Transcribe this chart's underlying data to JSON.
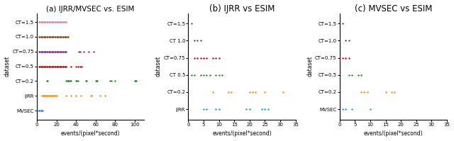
{
  "subplot_titles": [
    "(a) IJRR/MVSEC vs. ESIM",
    "(b) IJRR vs ESIM",
    "(c) MVSEC vs ESIM"
  ],
  "xlabel": "events/(pixel*second)",
  "ylabel": "dataset",
  "plot_a": {
    "yticks": [
      "CT=1.5",
      "CT=1.0",
      "CT=0.75",
      "CT=0.5",
      "CT=0.2",
      "IJRR",
      "MVSEC"
    ],
    "xlim": [
      0,
      110
    ],
    "xticks": [
      0,
      20,
      40,
      60,
      80,
      100
    ],
    "data": {
      "CT=1.5": [
        2,
        3,
        4,
        5,
        6,
        7,
        8,
        9,
        10,
        11,
        12,
        13,
        14,
        15,
        16,
        17,
        18,
        19,
        20,
        21,
        22,
        23,
        24,
        25,
        26,
        27,
        28,
        29,
        30
      ],
      "CT=1.0": [
        2,
        3,
        4,
        5,
        6,
        7,
        8,
        9,
        10,
        11,
        12,
        13,
        14,
        15,
        16,
        17,
        18,
        19,
        20,
        21,
        22,
        23,
        24,
        25,
        26,
        27,
        28,
        29,
        30,
        31,
        32
      ],
      "CT=0.75": [
        2,
        3,
        4,
        5,
        6,
        7,
        8,
        9,
        10,
        11,
        12,
        13,
        14,
        15,
        16,
        17,
        18,
        19,
        20,
        21,
        22,
        23,
        24,
        25,
        26,
        27,
        28,
        29,
        30,
        43,
        44,
        48,
        53,
        58
      ],
      "CT=0.5": [
        2,
        3,
        4,
        5,
        6,
        7,
        8,
        9,
        10,
        11,
        12,
        13,
        14,
        15,
        16,
        17,
        18,
        19,
        20,
        21,
        22,
        23,
        24,
        25,
        26,
        27,
        28,
        29,
        30,
        35,
        40,
        42,
        44,
        46
      ],
      "CT=0.2": [
        10,
        11,
        30,
        31,
        32,
        33,
        34,
        35,
        40,
        41,
        42,
        50,
        51,
        60,
        61,
        62,
        75,
        76,
        80,
        100,
        101,
        102
      ],
      "IJRR": [
        5,
        6,
        7,
        8,
        9,
        10,
        11,
        12,
        13,
        14,
        15,
        16,
        17,
        18,
        19,
        20,
        30,
        35,
        40,
        45,
        55,
        56,
        65,
        70
      ],
      "MVSEC": [
        1,
        2,
        3,
        4,
        5,
        6
      ]
    },
    "colors": {
      "CT=1.5": "#d4869c",
      "CT=1.0": "#8B4513",
      "CT=0.75": "#7B2D8B",
      "CT=0.5": "#CC0000",
      "CT=0.2": "#228B22",
      "IJRR": "#FF8C00",
      "MVSEC": "#1E90FF"
    }
  },
  "plot_b": {
    "yticks": [
      "CT=1.5",
      "CT 1.0",
      "CT=0.75",
      "CT 0.5",
      "CT=0.2",
      "IJRR"
    ],
    "xlim": [
      0,
      35
    ],
    "xticks": [
      0,
      5,
      10,
      15,
      20,
      25,
      30,
      35
    ],
    "data": {
      "CT=1.5": [
        1
      ],
      "CT 1.0": [
        2,
        3,
        4
      ],
      "CT=0.75": [
        2,
        3,
        4,
        5,
        6,
        8,
        9,
        10
      ],
      "CT 0.5": [
        1,
        2,
        4,
        5,
        6,
        7,
        9,
        10,
        11
      ],
      "CT=0.2": [
        8,
        13,
        14,
        20,
        21,
        22,
        25,
        31
      ],
      "IJRR": [
        5,
        6,
        9,
        10,
        19,
        20,
        24,
        25,
        26
      ]
    },
    "colors": {
      "CT=1.5": "#8B4513",
      "CT 1.0": "#7B2D8B",
      "CT=0.75": "#CC0000",
      "CT 0.5": "#228B22",
      "CT=0.2": "#FF8C00",
      "IJRR": "#1E90FF"
    }
  },
  "plot_c": {
    "yticks": [
      "CT=1.5",
      "CT=1.0",
      "CT=0.75",
      "CT=0.5",
      "CT=0.2",
      "MVSEC"
    ],
    "xlim": [
      0,
      35
    ],
    "xticks": [
      0,
      5,
      10,
      15,
      20,
      25,
      30,
      35
    ],
    "data": {
      "CT=1.5": [
        1
      ],
      "CT=1.0": [
        2,
        3
      ],
      "CT=0.75": [
        1,
        2,
        3
      ],
      "CT=0.5": [
        3,
        4,
        6,
        7
      ],
      "CT=0.2": [
        7,
        8,
        9,
        15,
        17,
        18
      ],
      "MVSEC": [
        1,
        2,
        4,
        10
      ]
    },
    "colors": {
      "CT=1.5": "#8B4513",
      "CT=1.0": "#7B2D8B",
      "CT=0.75": "#CC0000",
      "CT=0.5": "#228B22",
      "CT=0.2": "#FF8C00",
      "MVSEC": "#1E90FF"
    }
  },
  "figsize": [
    6.4,
    1.99
  ],
  "dpi": 100,
  "title_fontsize_a": 7.5,
  "title_fontsize_bc": 8.5,
  "axis_label_fontsize": 5.5,
  "tick_fontsize": 5.0
}
